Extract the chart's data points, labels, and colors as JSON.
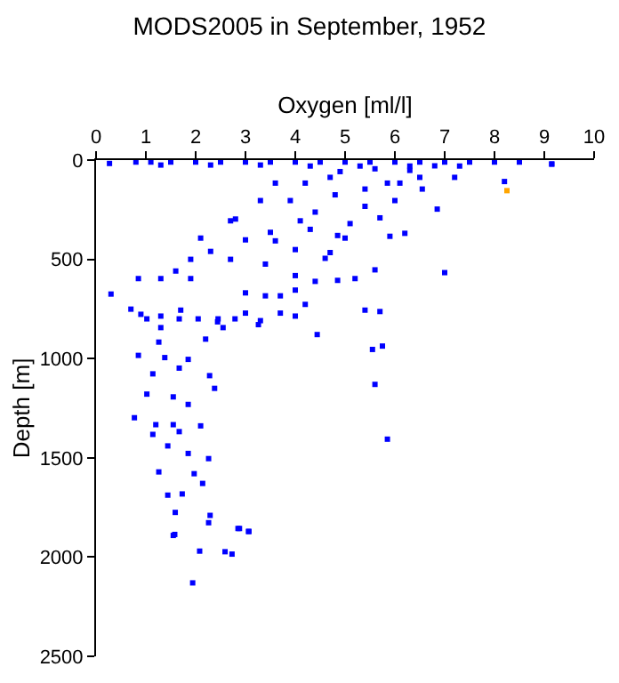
{
  "chart_data": {
    "type": "scatter",
    "title": "MODS2005 in September, 1952",
    "xlabel": "Oxygen [ml/l]",
    "ylabel": "Depth [m]",
    "xlim": [
      0,
      10
    ],
    "xticks": [
      0,
      1,
      2,
      3,
      4,
      5,
      6,
      7,
      8,
      9,
      10
    ],
    "ylim": [
      2500,
      0
    ],
    "yticks": [
      0,
      500,
      1000,
      1500,
      2000,
      2500
    ],
    "marker": "square",
    "series": [
      {
        "color": "#0000ff",
        "x": [
          0.27,
          0.8,
          1.1,
          1.5,
          2.0,
          2.5,
          3.0,
          3.5,
          4.0,
          4.5,
          5.0,
          5.5,
          6.0,
          6.5,
          7.0,
          7.5,
          8.0,
          8.5,
          9.15,
          1.3,
          2.3,
          3.3,
          4.3,
          5.3,
          6.3,
          7.3,
          8.2,
          9.15,
          7.2,
          6.85,
          6.2,
          5.9,
          5.0,
          4.85,
          4.3,
          4.0,
          3.5,
          3.0,
          2.8,
          2.1,
          1.9,
          2.3,
          2.7,
          3.4,
          1.6,
          1.3,
          1.9,
          0.85,
          0.3,
          3.0,
          3.4,
          4.0,
          4.0,
          4.4,
          4.85,
          5.2,
          5.6,
          7.0,
          5.4,
          5.7,
          0.7,
          0.9,
          1.3,
          1.7,
          2.05,
          2.45,
          3.0,
          3.3,
          3.7,
          4.2,
          3.7,
          1.3,
          2.55,
          4.2,
          4.8,
          5.4,
          6.0,
          6.55,
          4.4,
          5.1,
          5.7,
          3.6,
          3.9,
          3.3,
          2.7,
          4.1,
          4.7,
          4.6,
          3.6,
          4.9,
          5.6,
          6.3,
          6.8,
          5.85,
          4.7,
          5.4,
          6.1,
          6.5,
          1.02,
          1.67,
          2.44,
          2.79,
          3.26,
          4.0,
          4.44,
          5.55,
          5.75,
          5.6,
          5.85,
          0.85,
          1.38,
          1.85,
          2.2,
          1.26,
          1.14,
          1.67,
          2.28,
          2.38,
          1.02,
          1.55,
          1.85,
          0.77,
          1.2,
          1.55,
          2.1,
          1.14,
          1.67,
          1.44,
          1.85,
          2.26,
          1.26,
          1.97,
          2.14,
          1.44,
          1.73,
          1.59,
          2.29,
          2.88,
          3.06,
          1.55,
          1.58,
          2.08,
          2.59,
          2.73,
          1.94,
          2.26,
          2.85,
          3.07
        ],
        "values": [
          17,
          10,
          10,
          10,
          10,
          10,
          10,
          10,
          10,
          10,
          10,
          10,
          10,
          10,
          10,
          10,
          10,
          10,
          20,
          25,
          25,
          25,
          30,
          30,
          30,
          30,
          108,
          20,
          87,
          247,
          369,
          384,
          393,
          380,
          349,
          451,
          364,
          402,
          297,
          393,
          500,
          460,
          500,
          524,
          559,
          597,
          597,
          597,
          675,
          669,
          684,
          655,
          582,
          611,
          606,
          597,
          553,
          567,
          756,
          763,
          751,
          777,
          786,
          756,
          800,
          800,
          771,
          809,
          771,
          727,
          684,
          844,
          844,
          116,
          175,
          146,
          204,
          146,
          262,
          320,
          291,
          116,
          204,
          204,
          306,
          306,
          466,
          495,
          407,
          58,
          44,
          52,
          29,
          116,
          87,
          233,
          116,
          87,
          800,
          800,
          815,
          800,
          829,
          786,
          879,
          954,
          937,
          1130,
          1406,
          984,
          995,
          1004,
          902,
          917,
          1077,
          1048,
          1086,
          1150,
          1179,
          1193,
          1231,
          1298,
          1333,
          1333,
          1339,
          1382,
          1368,
          1440,
          1478,
          1504,
          1571,
          1580,
          1629,
          1688,
          1682,
          1775,
          1790,
          1856,
          1871,
          1891,
          1886,
          1970,
          1973,
          1985,
          2130,
          1827,
          1856,
          1871
        ]
      },
      {
        "color": "#ffa500",
        "x": [
          8.25
        ],
        "values": [
          154
        ]
      }
    ]
  }
}
